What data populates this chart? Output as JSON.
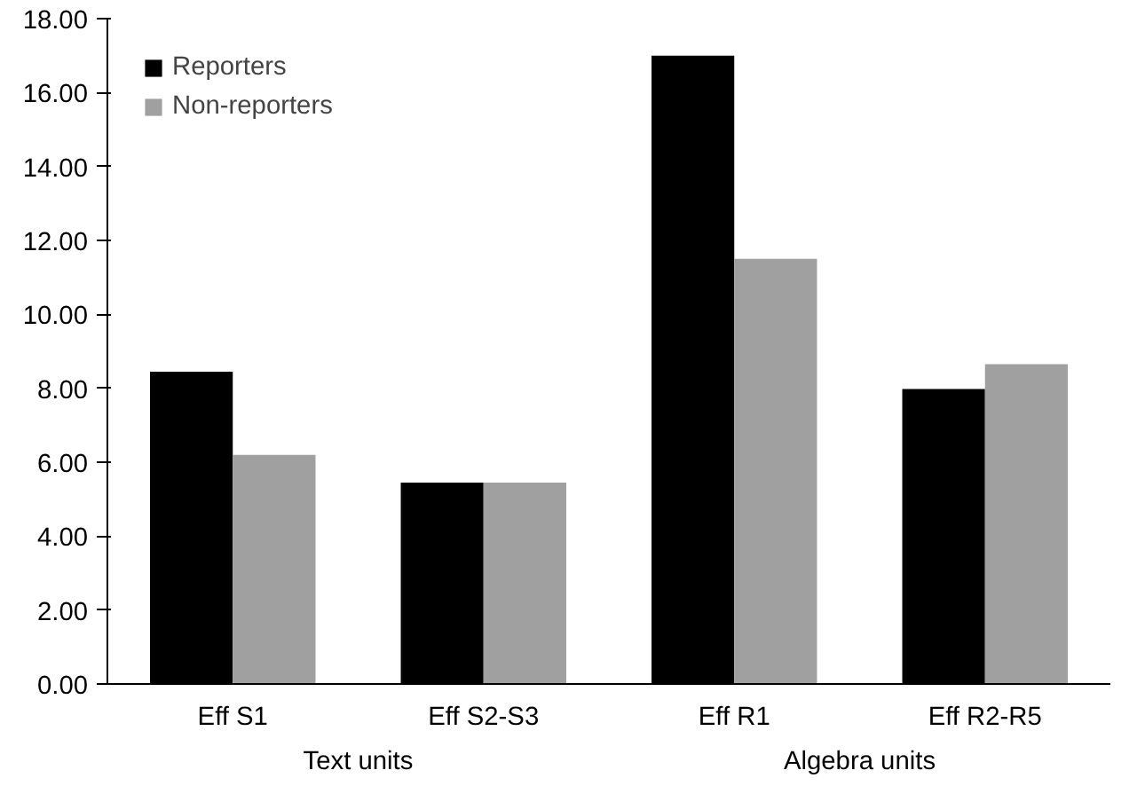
{
  "chart_data": {
    "type": "bar",
    "categories": [
      "Eff S1",
      "Eff S2-S3",
      "Eff R1",
      "Eff R2-R5"
    ],
    "series": [
      {
        "name": "Reporters",
        "color": "#000000",
        "values": [
          8.45,
          5.45,
          17.0,
          7.98
        ]
      },
      {
        "name": "Non-reporters",
        "color": "#a0a0a0",
        "values": [
          6.2,
          5.45,
          11.5,
          8.65
        ]
      }
    ],
    "ylim": [
      0,
      18
    ],
    "yticks": [
      {
        "value": 0,
        "label": "0.00"
      },
      {
        "value": 2,
        "label": "2.00"
      },
      {
        "value": 4,
        "label": "4.00"
      },
      {
        "value": 6,
        "label": "6.00"
      },
      {
        "value": 8,
        "label": "8.00"
      },
      {
        "value": 10,
        "label": "10.00"
      },
      {
        "value": 12,
        "label": "12.00"
      },
      {
        "value": 14,
        "label": "14.00"
      },
      {
        "value": 16,
        "label": "16.00"
      },
      {
        "value": 18,
        "label": "18.00"
      }
    ],
    "annotations": [
      "Text units",
      "Algebra units"
    ],
    "grid": false,
    "legend": "top left"
  }
}
